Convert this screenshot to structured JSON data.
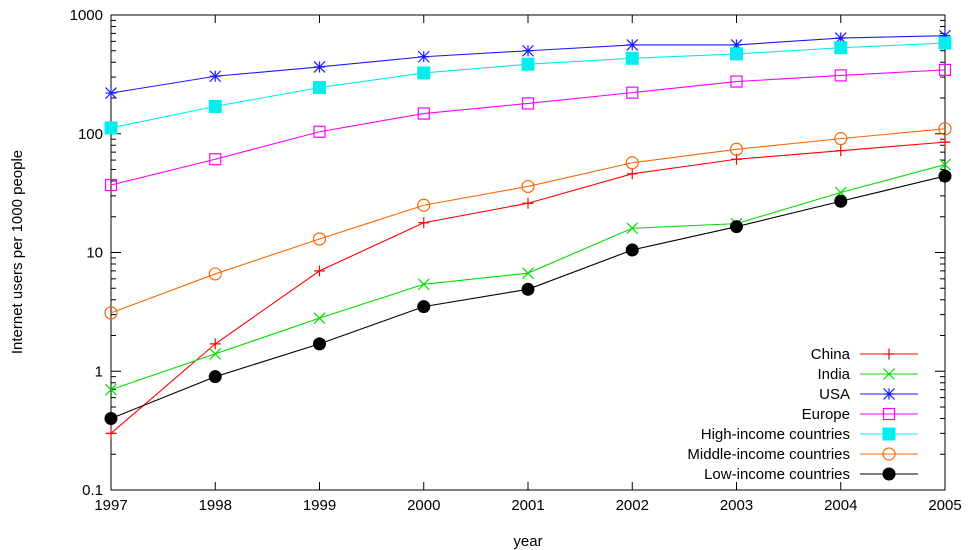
{
  "chart_data": {
    "type": "line",
    "title": "",
    "xlabel": "year",
    "ylabel": "Internet users per 1000 people",
    "x": [
      1997,
      1998,
      1999,
      2000,
      2001,
      2002,
      2003,
      2004,
      2005
    ],
    "xlim": [
      1997,
      2005
    ],
    "ylim": [
      0.1,
      1000
    ],
    "y_scale": "log",
    "x_ticks": [
      "1997",
      "1998",
      "1999",
      "2000",
      "2001",
      "2002",
      "2003",
      "2004",
      "2005"
    ],
    "y_ticks": [
      {
        "value": 0.1,
        "label": "0.1"
      },
      {
        "value": 1,
        "label": "1"
      },
      {
        "value": 10,
        "label": "10"
      },
      {
        "value": 100,
        "label": "100"
      },
      {
        "value": 1000,
        "label": "1000"
      }
    ],
    "grid": false,
    "legend_position": "bottom-right",
    "series": [
      {
        "name": "China",
        "color": "#ff0000",
        "marker": "plus",
        "values": [
          0.3,
          1.7,
          7,
          17.8,
          26,
          46,
          61,
          72,
          85
        ]
      },
      {
        "name": "India",
        "color": "#00dd00",
        "marker": "cross",
        "values": [
          0.7,
          1.4,
          2.8,
          5.4,
          6.7,
          16,
          17.5,
          32,
          55
        ]
      },
      {
        "name": "USA",
        "color": "#1a1aff",
        "marker": "asterisk",
        "values": [
          220,
          305,
          365,
          445,
          500,
          560,
          560,
          640,
          670
        ]
      },
      {
        "name": "Europe",
        "color": "#ff00ff",
        "marker": "square-open",
        "values": [
          37,
          61,
          104,
          148,
          180,
          222,
          275,
          310,
          345
        ]
      },
      {
        "name": "High-income countries",
        "color": "#00eeee",
        "marker": "square-filled",
        "values": [
          112,
          170,
          245,
          325,
          385,
          432,
          470,
          530,
          580
        ]
      },
      {
        "name": "Middle-income countries",
        "color": "#ff6600",
        "marker": "circle-open",
        "values": [
          3.1,
          6.6,
          13,
          25,
          36,
          57,
          74,
          91,
          110
        ]
      },
      {
        "name": "Low-income countries",
        "color": "#000000",
        "marker": "circle-filled",
        "values": [
          0.4,
          0.9,
          1.7,
          3.5,
          4.9,
          10.5,
          16.5,
          27,
          44
        ]
      }
    ]
  }
}
